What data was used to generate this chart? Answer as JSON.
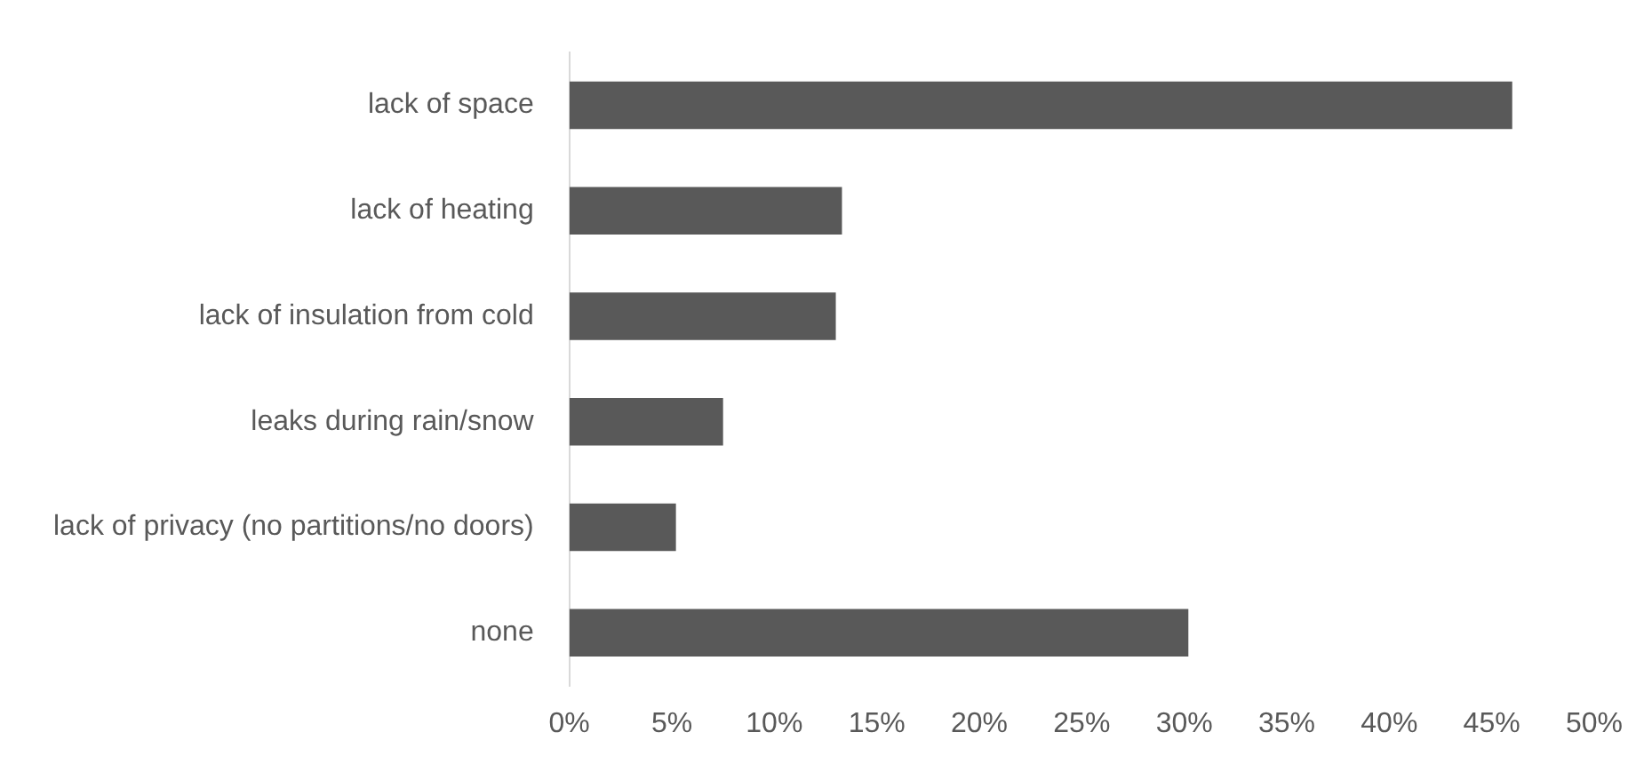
{
  "chart_data": {
    "type": "bar",
    "orientation": "horizontal",
    "categories": [
      "lack of space",
      "lack of heating",
      "lack of insulation from cold",
      "leaks during rain/snow",
      "lack of privacy (no partitions/no doors)",
      "none"
    ],
    "values": [
      46,
      13.3,
      13,
      7.5,
      5.2,
      30.2
    ],
    "color": "#595959",
    "xlim": [
      0,
      50
    ],
    "xticks": [
      {
        "value": 0,
        "label": "0%"
      },
      {
        "value": 5,
        "label": "5%"
      },
      {
        "value": 10,
        "label": "10%"
      },
      {
        "value": 15,
        "label": "15%"
      },
      {
        "value": 20,
        "label": "20%"
      },
      {
        "value": 25,
        "label": "25%"
      },
      {
        "value": 30,
        "label": "30%"
      },
      {
        "value": 35,
        "label": "35%"
      },
      {
        "value": 40,
        "label": "40%"
      },
      {
        "value": 45,
        "label": "45%"
      },
      {
        "value": 50,
        "label": "50%"
      }
    ],
    "grid": false,
    "legend": false
  }
}
